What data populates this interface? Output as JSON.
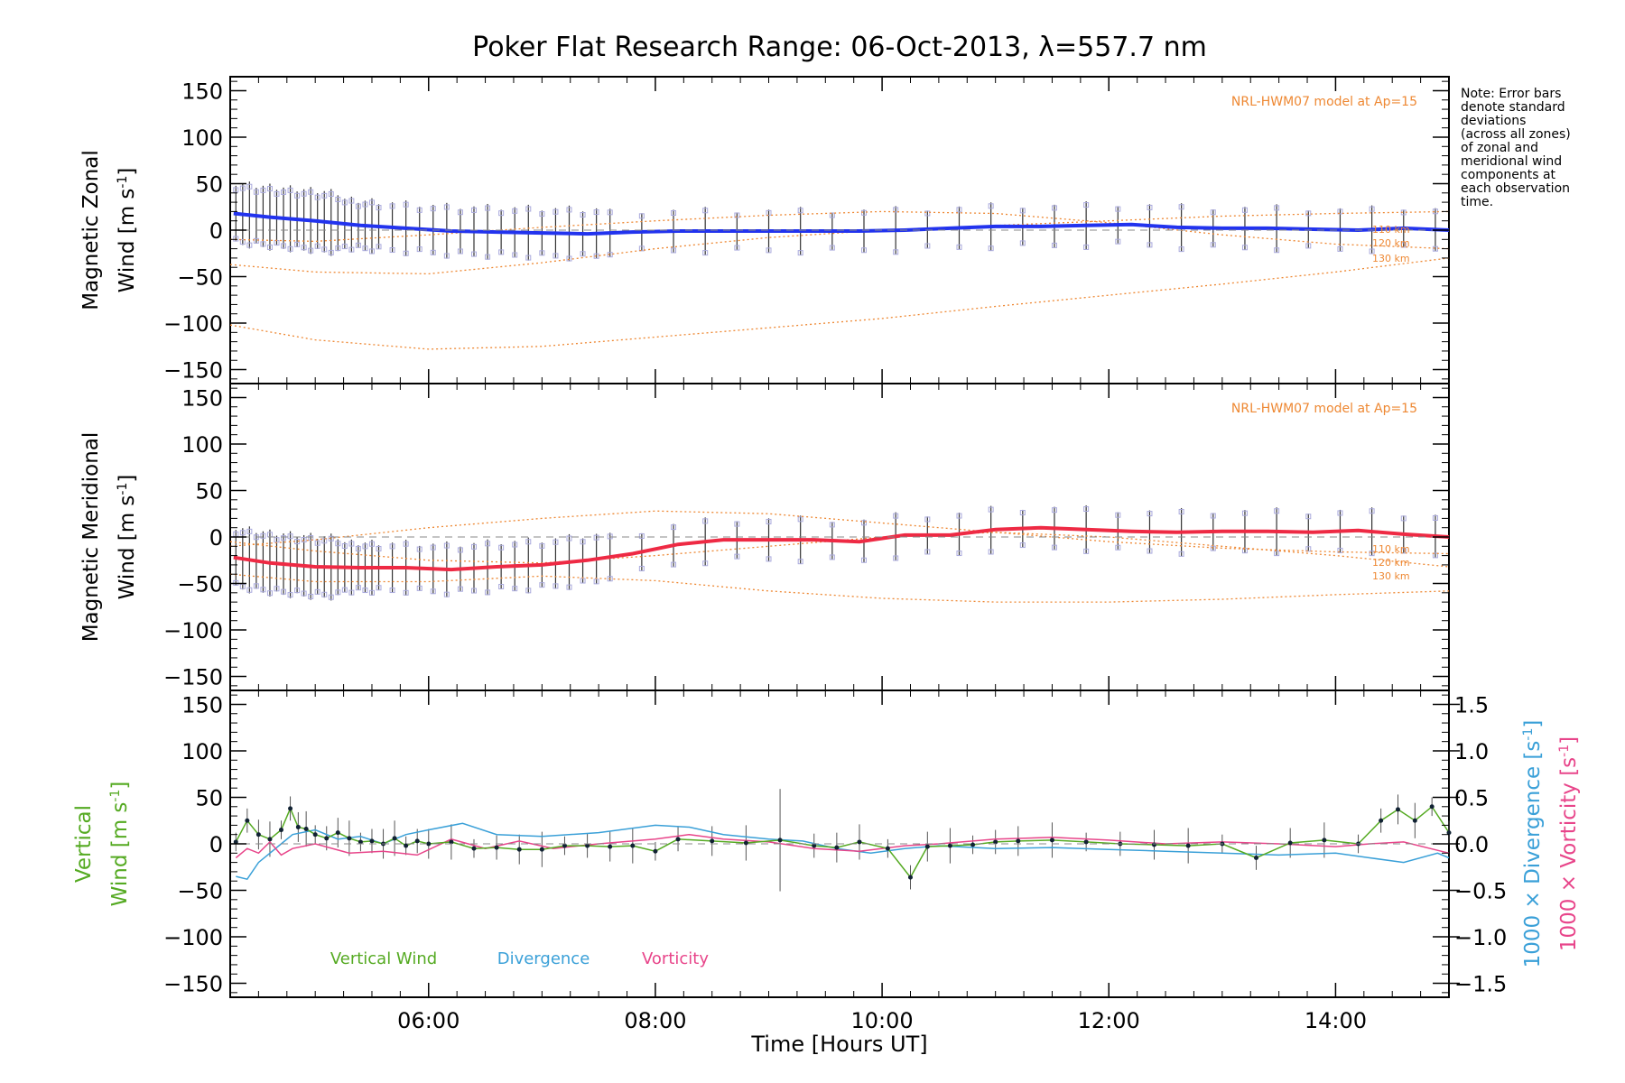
{
  "colors": {
    "zonal": "#2233ee",
    "meridional": "#ee2a44",
    "vertical": "#55aa22",
    "divergence": "#3aa0d8",
    "vorticity": "#e8458a",
    "model": "#ee8833",
    "scatter": "#aaaadd",
    "zero": "#888888"
  },
  "chart_data": [
    {
      "type": "line",
      "name": "zonal",
      "title": "Poker Flat Research Range: 06-Oct-2013, λ=557.7 nm",
      "ylabel_line1": "Magnetic Zonal",
      "ylabel_line2": "Wind [m s",
      "ylabel_sup": "-1",
      "ylabel_close": "]",
      "ylim": [
        -165,
        165
      ],
      "xlim": [
        4.25,
        15.0
      ],
      "yticks": [
        150,
        100,
        50,
        0,
        -50,
        -100,
        -150
      ],
      "ytick_labels": [
        "150",
        "100",
        "50",
        "0",
        "−50",
        "−100",
        "−150"
      ],
      "model_label": "NRL-HWM07 model at Ap=15",
      "model_alt_labels": [
        "110 km",
        "120 km",
        "130 km"
      ],
      "note": [
        "Note: Error bars",
        "denote standard",
        "deviations",
        "(across all zones)",
        "of zonal and",
        "meridional wind",
        "components at",
        "each observation",
        "time."
      ],
      "series": [
        {
          "name": "Measured zonal wind (mean)",
          "x": [
            4.28,
            4.6,
            5.0,
            5.4,
            5.8,
            6.2,
            6.6,
            7.0,
            7.4,
            7.8,
            8.2,
            8.6,
            9.0,
            9.4,
            9.8,
            10.2,
            10.6,
            11.0,
            11.4,
            11.8,
            12.2,
            12.6,
            13.0,
            13.4,
            13.8,
            14.2,
            14.6,
            15.0
          ],
          "values": [
            18,
            14,
            10,
            5,
            2,
            -1,
            -2,
            -3,
            -4,
            -2,
            -1,
            -1,
            -1,
            -1,
            -1,
            0,
            2,
            4,
            4,
            5,
            6,
            3,
            2,
            2,
            1,
            0,
            2,
            0
          ]
        },
        {
          "name": "Model 110 km",
          "x": [
            4.25,
            5.0,
            6.0,
            7.0,
            8.0,
            9.0,
            10.0,
            11.0,
            12.0,
            13.0,
            14.0,
            15.0
          ],
          "values": [
            -37,
            -45,
            -47,
            -35,
            -20,
            -8,
            0,
            5,
            10,
            15,
            18,
            20
          ]
        },
        {
          "name": "Model 120 km",
          "x": [
            4.25,
            5.0,
            6.0,
            7.0,
            8.0,
            9.0,
            10.0,
            11.0,
            12.0,
            13.0,
            14.0,
            15.0
          ],
          "values": [
            -102,
            -118,
            -128,
            -125,
            -115,
            -105,
            -95,
            -82,
            -70,
            -58,
            -45,
            -30
          ]
        },
        {
          "name": "Model 130 km",
          "x": [
            4.25,
            5.0,
            6.0,
            7.0,
            8.0,
            9.0,
            10.0,
            11.0,
            12.0,
            13.0,
            14.0,
            15.0
          ],
          "values": [
            -10,
            -12,
            -5,
            3,
            10,
            16,
            20,
            18,
            8,
            -5,
            -15,
            -20
          ]
        }
      ]
    },
    {
      "type": "line",
      "name": "meridional",
      "ylabel_line1": "Magnetic Meridional",
      "ylabel_line2": "Wind [m s",
      "ylabel_sup": "-1",
      "ylabel_close": "]",
      "ylim": [
        -165,
        165
      ],
      "xlim": [
        4.25,
        15.0
      ],
      "yticks": [
        150,
        100,
        50,
        0,
        -50,
        -100,
        -150
      ],
      "ytick_labels": [
        "150",
        "100",
        "50",
        "0",
        "−50",
        "−100",
        "−150"
      ],
      "model_label": "NRL-HWM07 model at Ap=15",
      "model_alt_labels": [
        "110 km",
        "120 km",
        "130 km"
      ],
      "series": [
        {
          "name": "Measured meridional wind (mean)",
          "x": [
            4.28,
            4.6,
            5.0,
            5.4,
            5.8,
            6.2,
            6.6,
            7.0,
            7.4,
            7.8,
            8.2,
            8.6,
            9.0,
            9.4,
            9.8,
            10.2,
            10.6,
            11.0,
            11.4,
            11.8,
            12.2,
            12.6,
            13.0,
            13.4,
            13.8,
            14.2,
            14.6,
            15.0
          ],
          "values": [
            -22,
            -28,
            -32,
            -33,
            -33,
            -35,
            -32,
            -30,
            -25,
            -18,
            -8,
            -3,
            -3,
            -3,
            -5,
            2,
            2,
            8,
            10,
            8,
            6,
            5,
            6,
            6,
            5,
            7,
            3,
            0
          ]
        },
        {
          "name": "Model 110 km",
          "x": [
            4.25,
            5.0,
            6.0,
            7.0,
            8.0,
            9.0,
            10.0,
            11.0,
            12.0,
            13.0,
            14.0,
            15.0
          ],
          "values": [
            -10,
            -3,
            10,
            20,
            28,
            25,
            15,
            5,
            -5,
            -12,
            -16,
            -18
          ]
        },
        {
          "name": "Model 120 km",
          "x": [
            4.25,
            5.0,
            6.0,
            7.0,
            8.0,
            9.0,
            10.0,
            11.0,
            12.0,
            13.0,
            14.0,
            15.0
          ],
          "values": [
            -5,
            -15,
            -25,
            -28,
            -20,
            -10,
            0,
            5,
            0,
            -10,
            -20,
            -32
          ]
        },
        {
          "name": "Model 130 km",
          "x": [
            4.25,
            5.0,
            6.0,
            7.0,
            8.0,
            9.0,
            10.0,
            11.0,
            12.0,
            13.0,
            14.0,
            15.0
          ],
          "values": [
            -40,
            -48,
            -48,
            -42,
            -47,
            -58,
            -66,
            -70,
            -70,
            -67,
            -62,
            -58
          ]
        }
      ]
    },
    {
      "type": "line",
      "name": "vertical",
      "ylabel_line1": "Vertical",
      "ylabel_line2": "Wind [m s",
      "ylabel_sup": "-1",
      "ylabel_close": "]",
      "xlabel": "Time [Hours UT]",
      "ylim": [
        -165,
        165
      ],
      "xlim": [
        4.25,
        15.0
      ],
      "yticks": [
        150,
        100,
        50,
        0,
        -50,
        -100,
        -150
      ],
      "ytick_labels": [
        "150",
        "100",
        "50",
        "0",
        "−50",
        "−100",
        "−150"
      ],
      "xticks": [
        6,
        8,
        10,
        12,
        14
      ],
      "xtick_labels": [
        "06:00",
        "08:00",
        "10:00",
        "12:00",
        "14:00"
      ],
      "y2lim": [
        -1.65,
        1.65
      ],
      "y2ticks": [
        1.5,
        1.0,
        0.5,
        0.0,
        -0.5,
        -1.0,
        -1.5
      ],
      "y2tick_labels": [
        "1.5",
        "1.0",
        "0.5",
        "0.0",
        "−0.5",
        "−1.0",
        "−1.5"
      ],
      "y2label_div": "1000 × Divergence [s",
      "y2label_vor": "1000 × Vorticity [s",
      "y2label_sup": "-1",
      "y2label_close": "]",
      "legend": [
        "Vertical Wind",
        "Divergence",
        "Vorticity"
      ],
      "series": [
        {
          "name": "Vertical Wind",
          "x": [
            4.3,
            4.4,
            4.5,
            4.6,
            4.7,
            4.78,
            4.85,
            4.92,
            5.0,
            5.1,
            5.2,
            5.3,
            5.4,
            5.5,
            5.6,
            5.7,
            5.8,
            5.9,
            6.0,
            6.2,
            6.4,
            6.6,
            6.8,
            7.0,
            7.2,
            7.4,
            7.6,
            7.8,
            8.0,
            8.2,
            8.5,
            8.8,
            9.1,
            9.4,
            9.6,
            9.8,
            10.05,
            10.25,
            10.4,
            10.6,
            10.8,
            11.0,
            11.2,
            11.5,
            11.8,
            12.1,
            12.4,
            12.7,
            13.0,
            13.3,
            13.6,
            13.9,
            14.2,
            14.4,
            14.55,
            14.7,
            14.85,
            15.0
          ],
          "values": [
            2,
            25,
            10,
            5,
            15,
            38,
            18,
            16,
            10,
            6,
            12,
            6,
            2,
            3,
            0,
            6,
            -2,
            3,
            0,
            2,
            -5,
            -4,
            -6,
            -6,
            -2,
            -2,
            -3,
            -2,
            -8,
            5,
            3,
            1,
            4,
            -2,
            -4,
            2,
            -5,
            -36,
            -3,
            -2,
            -1,
            2,
            3,
            4,
            2,
            0,
            -1,
            -2,
            0,
            -15,
            1,
            4,
            0,
            25,
            37,
            25,
            40,
            12
          ]
        },
        {
          "name": "Divergence",
          "x": [
            4.3,
            4.4,
            4.5,
            4.6,
            4.7,
            4.8,
            5.0,
            5.2,
            5.4,
            5.6,
            5.8,
            6.0,
            6.3,
            6.6,
            7.0,
            7.5,
            8.0,
            8.3,
            8.6,
            9.0,
            9.3,
            9.6,
            9.9,
            10.2,
            10.5,
            11.0,
            11.5,
            12.0,
            12.5,
            13.0,
            13.5,
            14.0,
            14.3,
            14.6,
            14.9,
            15.0
          ],
          "values": [
            -0.35,
            -0.38,
            -0.2,
            -0.1,
            0.0,
            0.1,
            0.15,
            0.05,
            0.08,
            0.0,
            0.1,
            0.15,
            0.22,
            0.1,
            0.08,
            0.12,
            0.2,
            0.18,
            0.1,
            0.05,
            0.03,
            -0.05,
            -0.1,
            -0.05,
            -0.02,
            -0.05,
            -0.04,
            -0.06,
            -0.08,
            -0.1,
            -0.12,
            -0.1,
            -0.15,
            -0.2,
            -0.1,
            -0.15
          ]
        },
        {
          "name": "Vorticity",
          "x": [
            4.3,
            4.4,
            4.5,
            4.6,
            4.7,
            4.8,
            5.0,
            5.3,
            5.6,
            5.9,
            6.2,
            6.5,
            6.8,
            7.1,
            7.5,
            8.0,
            8.3,
            8.6,
            9.0,
            9.4,
            9.8,
            10.2,
            10.5,
            11.0,
            11.5,
            12.0,
            12.5,
            13.0,
            13.5,
            14.0,
            14.3,
            14.6,
            15.0
          ],
          "values": [
            -0.15,
            -0.05,
            -0.1,
            0.02,
            -0.12,
            -0.05,
            0.0,
            -0.1,
            -0.08,
            -0.12,
            0.05,
            -0.05,
            0.03,
            -0.05,
            0.0,
            0.05,
            0.1,
            0.05,
            0.02,
            -0.05,
            -0.08,
            -0.02,
            0.0,
            0.05,
            0.07,
            0.04,
            0.0,
            0.02,
            0.0,
            -0.03,
            0.0,
            0.02,
            -0.1
          ]
        }
      ]
    }
  ]
}
